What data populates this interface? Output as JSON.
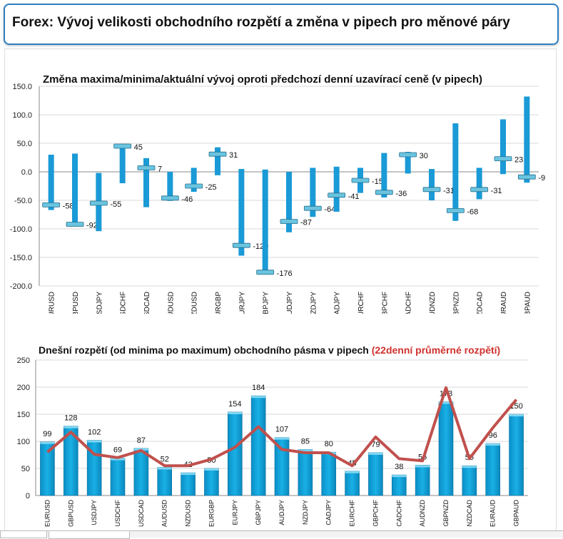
{
  "header": {
    "title": "Forex: Vývoj velikosti obchodního rozpětí a změna v pipech pro měnové páry"
  },
  "chart_data": [
    {
      "type": "range",
      "title": "Změna maxima/minima/aktuální vývoj oproti předchozí denní uzavírací ceně (v pipech)",
      "categories": [
        "EURUSD",
        "GBPUSD",
        "USDJPY",
        "USDCHF",
        "USDCAD",
        "AUDUSD",
        "NZDUSD",
        "EURGBP",
        "EURJPY",
        "GBPJPY",
        "AUDJPY",
        "NZDJPY",
        "CADJPY",
        "EURCHF",
        "GBPCHF",
        "CADCHF",
        "AUDNZD",
        "GBPNZD",
        "NZDCAD",
        "EURAUD",
        "GBPAUD"
      ],
      "high": [
        30,
        32,
        -2,
        49,
        24,
        0,
        7,
        43,
        5,
        4,
        0,
        7,
        9,
        7,
        33,
        35,
        5,
        85,
        7,
        92,
        132
      ],
      "low": [
        -67,
        -94,
        -104,
        -20,
        -62,
        -51,
        -35,
        -6,
        -147,
        -178,
        -106,
        -79,
        -70,
        -37,
        -45,
        -3,
        -50,
        -86,
        -48,
        -4,
        -19
      ],
      "current": [
        -58,
        -92,
        -55,
        45,
        7,
        -46,
        -25,
        31,
        -129,
        -176,
        -87,
        -64,
        -41,
        -15,
        -36,
        30,
        -31,
        -68,
        -31,
        23,
        -9
      ],
      "yticks": [
        "150.0",
        "100.0",
        "50.0",
        "0.0",
        "-50.0",
        "-100.0",
        "-150.0",
        "-200.0"
      ],
      "ylim": [
        -200,
        150
      ],
      "grid": true,
      "colors": {
        "range": "#1a9ad6",
        "marker": "#6ac4e0"
      }
    },
    {
      "type": "bar+line",
      "title": "Dnešní rozpětí (od minima po maximum) obchodního pásma v pipech",
      "title_highlight": "(22denní průměrné rozpětí)",
      "categories": [
        "EURUSD",
        "GBPUSD",
        "USDJPY",
        "USDCHF",
        "USDCAD",
        "AUDUSD",
        "NZDUSD",
        "EURGBP",
        "EURJPY",
        "GBPJPY",
        "AUDJPY",
        "NZDJPY",
        "CADJPY",
        "EURCHF",
        "GBPCHF",
        "CADCHF",
        "AUDNZD",
        "GBPNZD",
        "NZDCAD",
        "EURAUD",
        "GBPAUD"
      ],
      "series": [
        {
          "type": "bar",
          "values": [
            99,
            128,
            102,
            69,
            87,
            52,
            42,
            50,
            154,
            184,
            107,
            85,
            80,
            45,
            79,
            38,
            56,
            173,
            55,
            96,
            150
          ]
        },
        {
          "type": "line",
          "name": "22denní průměrné rozpětí",
          "values": [
            80,
            117,
            76,
            70,
            83,
            55,
            55,
            67,
            89,
            127,
            85,
            79,
            79,
            55,
            108,
            68,
            64,
            199,
            68,
            125,
            177
          ]
        }
      ],
      "yticks": [
        "250",
        "200",
        "150",
        "100",
        "50",
        "0"
      ],
      "ylim": [
        0,
        250
      ],
      "grid": true,
      "colors": {
        "bar": "#0aa0d8",
        "line": "#c0504d",
        "highlight": "#d0312d"
      }
    }
  ]
}
